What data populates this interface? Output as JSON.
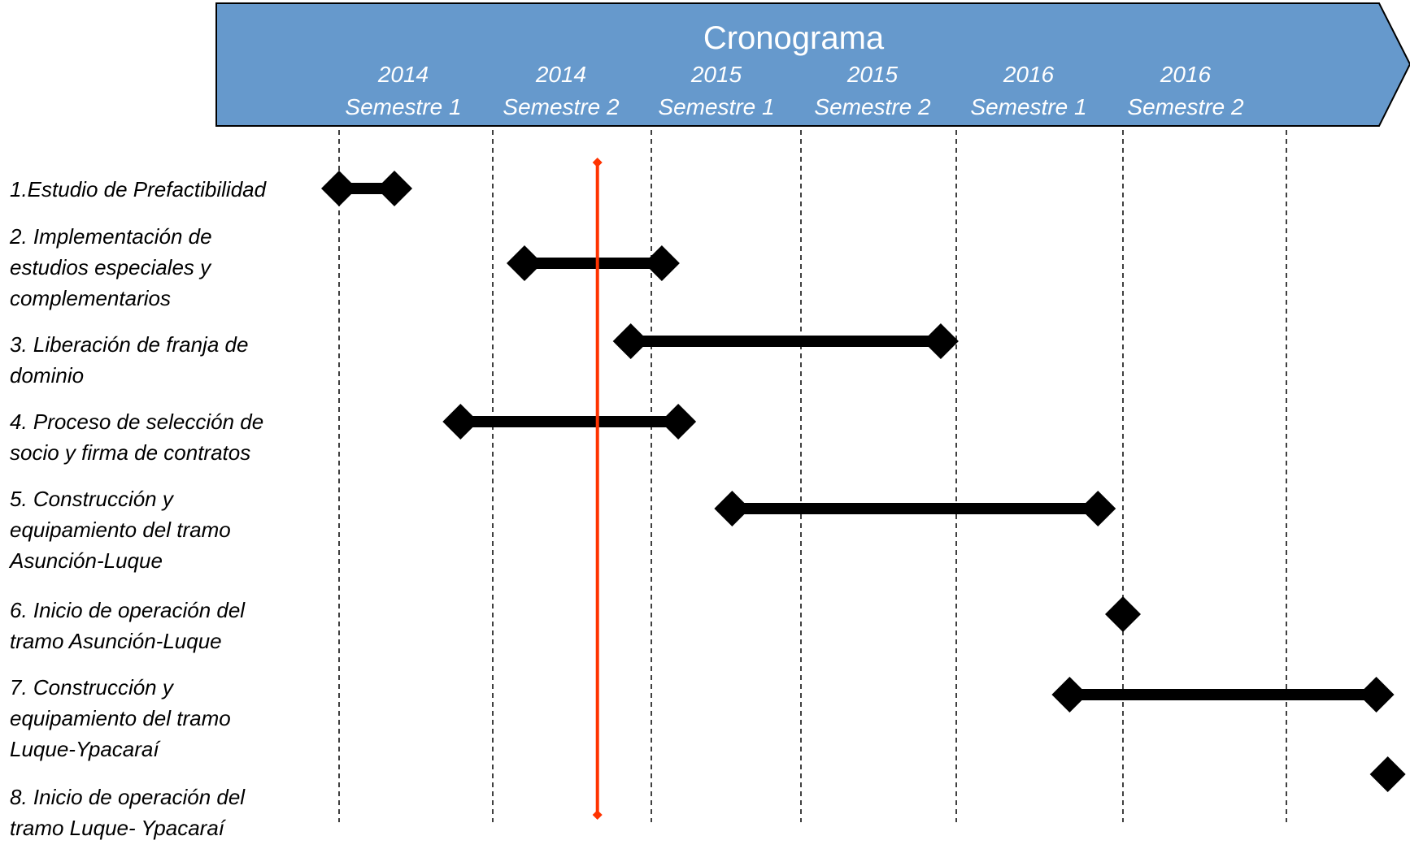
{
  "header": {
    "title": "Cronograma",
    "columns": [
      {
        "year": "2014",
        "semester": "Semestre 1"
      },
      {
        "year": "2014",
        "semester": "Semestre 2"
      },
      {
        "year": "2015",
        "semester": "Semestre 1"
      },
      {
        "year": "2015",
        "semester": "Semestre 2"
      },
      {
        "year": "2016",
        "semester": "Semestre 1"
      },
      {
        "year": "2016",
        "semester": "Semestre 2"
      }
    ]
  },
  "colors": {
    "banner": "#6699cc",
    "banner_stroke": "#000000",
    "bars": "#000000",
    "today_line": "#ff3300",
    "grid": "#000000"
  },
  "tasks": [
    {
      "lines": [
        "1.Estudio de Prefactibilidad"
      ],
      "start": 0.0,
      "end": 0.36
    },
    {
      "lines": [
        "2. Implementación de",
        "estudios especiales y",
        "complementarios"
      ],
      "start": 1.2,
      "end": 2.07
    },
    {
      "lines": [
        "3. Liberación de franja de",
        "dominio"
      ],
      "start": 1.87,
      "end": 3.9
    },
    {
      "lines": [
        "4. Proceso de selección de",
        "socio y firma de contratos"
      ],
      "start": 0.79,
      "end": 2.18
    },
    {
      "lines": [
        "5. Construcción y",
        "equipamiento del tramo",
        "Asunción-Luque"
      ],
      "start": 2.54,
      "end": 4.85
    },
    {
      "lines": [
        "6. Inicio de operación del",
        "tramo Asunción-Luque"
      ],
      "milestone": 5.0
    },
    {
      "lines": [
        "7. Construcción y",
        "equipamiento del tramo",
        "Luque-Ypacaraí"
      ],
      "start": 4.68,
      "end": 6.55
    },
    {
      "lines": [
        "8. Inicio de operación del",
        "tramo Luque- Ypacaraí"
      ],
      "milestone": 6.62
    }
  ],
  "today": 1.66
}
